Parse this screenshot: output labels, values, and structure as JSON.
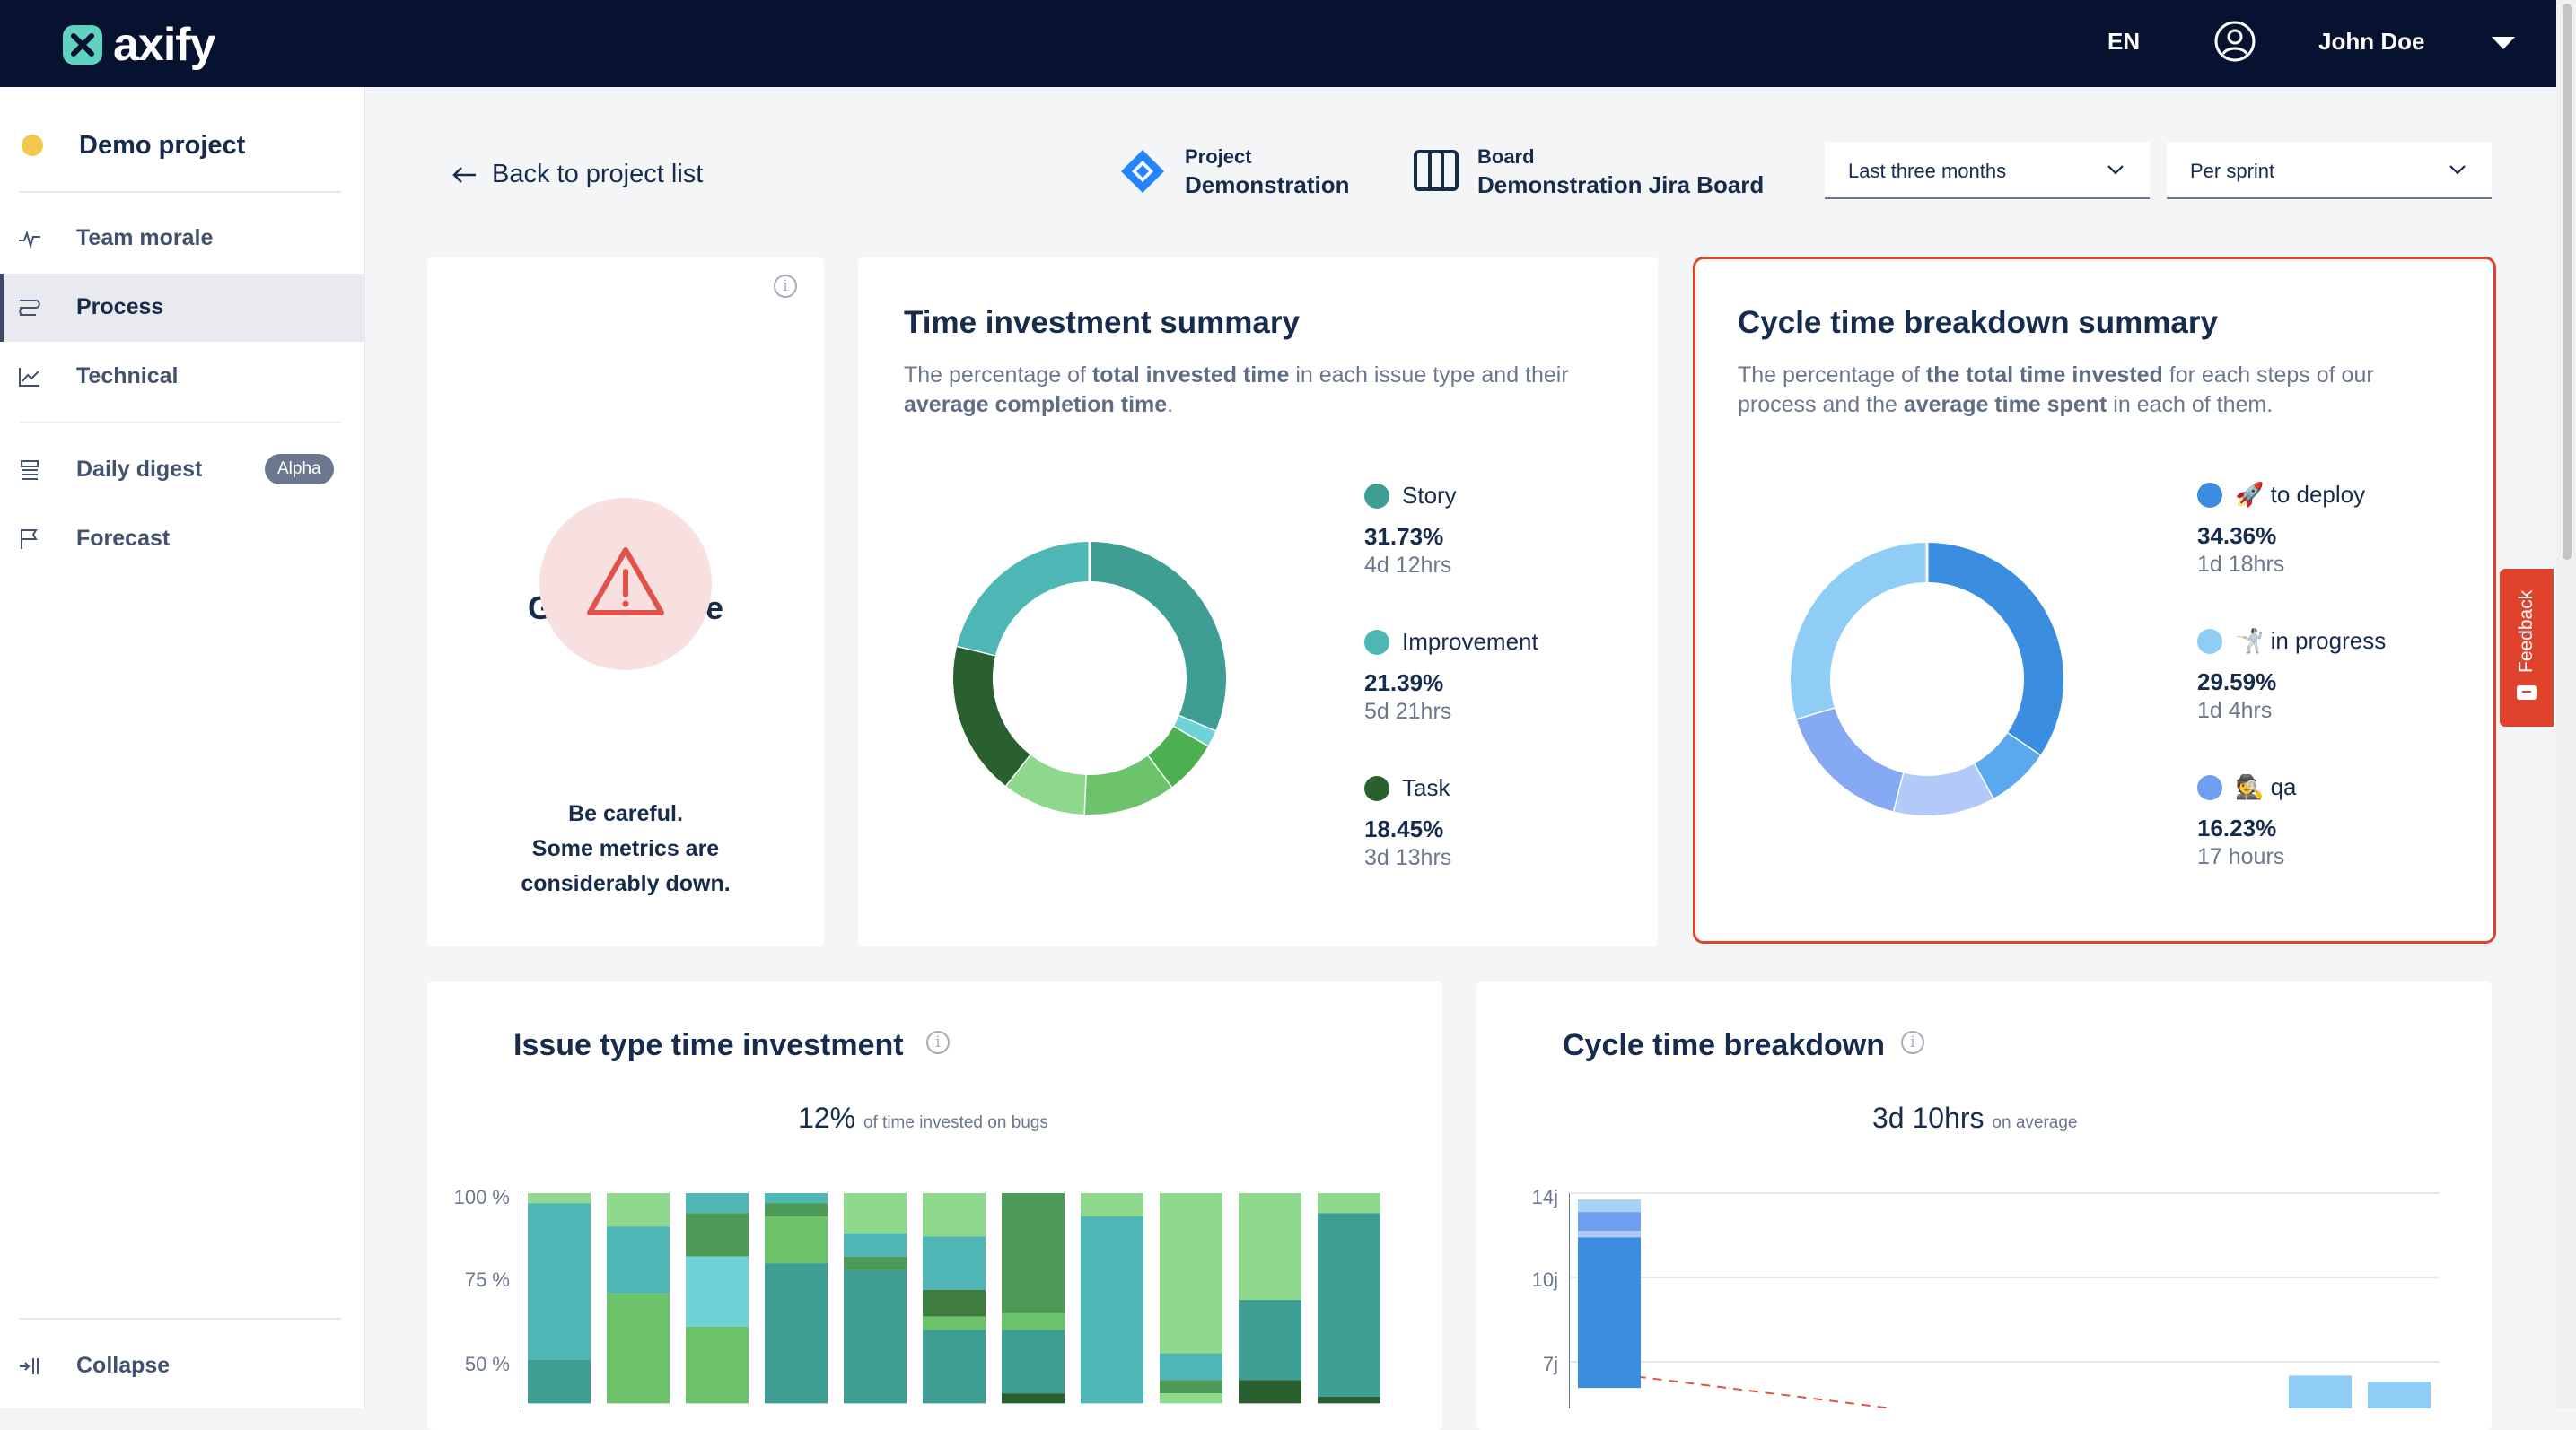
{
  "app": {
    "logo_text": "axify"
  },
  "topbar": {
    "lang": "EN",
    "user_name": "John Doe"
  },
  "sidebar": {
    "project": "Demo project",
    "items": [
      {
        "label": "Team morale",
        "icon": "pulse-icon"
      },
      {
        "label": "Process",
        "icon": "process-icon",
        "active": true
      },
      {
        "label": "Technical",
        "icon": "trend-chart-icon"
      },
      {
        "label": "Daily digest",
        "icon": "digest-icon",
        "badge": "Alpha"
      },
      {
        "label": "Forecast",
        "icon": "flag-icon"
      }
    ],
    "collapse": "Collapse"
  },
  "header": {
    "back": "Back to project list",
    "project_caption": "Project",
    "project_value": "Demonstration",
    "board_caption": "Board",
    "board_value": "Demonstration Jira Board",
    "period": "Last three months",
    "granularity": "Per sprint"
  },
  "global_score": {
    "title": "Global score",
    "message_line1": "Be careful.",
    "message_line2": "Some metrics are",
    "message_line3": "considerably down."
  },
  "time_investment": {
    "title": "Time investment summary",
    "desc_line1_pre": "The percentage of ",
    "desc_line1_bold": "total invested time",
    "desc_line1_post": " in each issue type and their",
    "desc_line2_bold": "average completion time",
    "desc_line2_post": ".",
    "legend": [
      {
        "name": "Story",
        "pct": "31.73%",
        "dur": "4d 12hrs",
        "color": "#3f9e94"
      },
      {
        "name": "Improvement",
        "pct": "21.39%",
        "dur": "5d 21hrs",
        "color": "#4fb6b6"
      },
      {
        "name": "Task",
        "pct": "18.45%",
        "dur": "3d 13hrs",
        "color": "#2a5f2f"
      }
    ]
  },
  "cycle_summary": {
    "title": "Cycle time breakdown summary",
    "desc_line1_pre": "The percentage of ",
    "desc_line1_bold": "the total time invested",
    "desc_line1_post": " for each steps of our",
    "desc_line2_pre": "process and the ",
    "desc_line2_bold": "average time spent",
    "desc_line2_post": " in each of them.",
    "legend": [
      {
        "name": "🚀 to deploy",
        "pct": "34.36%",
        "dur": "1d 18hrs",
        "color": "#3b8de0"
      },
      {
        "name": "🤺 in progress",
        "pct": "29.59%",
        "dur": "1d 4hrs",
        "color": "#8fcdf7"
      },
      {
        "name": "🕵️ qa",
        "pct": "16.23%",
        "dur": "17 hours",
        "color": "#6f9ef0"
      }
    ]
  },
  "issue_type_chart": {
    "title": "Issue type time investment",
    "headline_value": "12%",
    "headline_caption": "of time invested on bugs",
    "y_ticks": [
      "100 %",
      "75 %",
      "50 %"
    ]
  },
  "cycle_chart": {
    "title": "Cycle time breakdown",
    "headline_value": "3d 10hrs",
    "headline_caption": "on average",
    "y_ticks": [
      "14j",
      "10j",
      "7j"
    ]
  },
  "feedback": "Feedback",
  "chart_data": [
    {
      "type": "pie",
      "title": "Time investment summary",
      "slices": [
        {
          "label": "Story",
          "value": 31.73,
          "color": "#3f9e94"
        },
        {
          "label": "",
          "value": 2.0,
          "color": "#6ed3d6"
        },
        {
          "label": "",
          "value": 6.5,
          "color": "#4caf50"
        },
        {
          "label": "",
          "value": 11.0,
          "color": "#6cc36c"
        },
        {
          "label": "",
          "value": 10.0,
          "color": "#8fd98f"
        },
        {
          "label": "Task",
          "value": 18.45,
          "color": "#2a5f2f"
        },
        {
          "label": "Improvement",
          "value": 21.39,
          "color": "#4fb6b6"
        }
      ]
    },
    {
      "type": "pie",
      "title": "Cycle time breakdown summary",
      "slices": [
        {
          "label": "🚀 to deploy",
          "value": 34.36,
          "color": "#3b8de0"
        },
        {
          "label": "",
          "value": 7.5,
          "color": "#5aa9ef"
        },
        {
          "label": "",
          "value": 12.0,
          "color": "#b3c9f7"
        },
        {
          "label": "🕵️ qa",
          "value": 16.23,
          "color": "#86a9f4"
        },
        {
          "label": "🤺 in progress",
          "value": 29.59,
          "color": "#8fcdf7"
        }
      ]
    },
    {
      "type": "bar",
      "title": "Issue type time investment",
      "ylim": [
        0,
        100
      ],
      "stacked": true,
      "y_ticks": [
        100,
        75,
        50
      ],
      "series": [
        {
          "color": "#4fb6b6",
          "values": [
            null,
            null,
            null,
            null,
            null,
            null,
            null,
            null,
            null,
            null,
            null
          ]
        }
      ],
      "stacks": [
        [
          {
            "v": 3,
            "c": "#8fd98f"
          },
          {
            "v": 47,
            "c": "#4fb6b6"
          },
          {
            "v": 13,
            "c": "#3f9e94"
          }
        ],
        [
          {
            "v": 10,
            "c": "#8fd98f"
          },
          {
            "v": 20,
            "c": "#4fb6b6"
          },
          {
            "v": 33,
            "c": "#6cc36c"
          }
        ],
        [
          {
            "v": 6,
            "c": "#4fb6b6"
          },
          {
            "v": 13,
            "c": "#4c9a55"
          },
          {
            "v": 21,
            "c": "#6ed3d6"
          },
          {
            "v": 23,
            "c": "#6cc36c"
          }
        ],
        [
          {
            "v": 3,
            "c": "#4fb6b6"
          },
          {
            "v": 4,
            "c": "#4c9a55"
          },
          {
            "v": 14,
            "c": "#6cc36c"
          },
          {
            "v": 42,
            "c": "#3f9e94"
          }
        ],
        [
          {
            "v": 12,
            "c": "#8fd98f"
          },
          {
            "v": 7,
            "c": "#4fb6b6"
          },
          {
            "v": 4,
            "c": "#4c9a55"
          },
          {
            "v": 40,
            "c": "#3f9e94"
          }
        ],
        [
          {
            "v": 13,
            "c": "#8fd98f"
          },
          {
            "v": 16,
            "c": "#4fb6b6"
          },
          {
            "v": 8,
            "c": "#3e7d3f"
          },
          {
            "v": 4,
            "c": "#6cc36c"
          },
          {
            "v": 22,
            "c": "#3f9e94"
          }
        ],
        [
          {
            "v": 36,
            "c": "#4c9a55"
          },
          {
            "v": 5,
            "c": "#6cc36c"
          },
          {
            "v": 19,
            "c": "#3f9e94"
          },
          {
            "v": 3,
            "c": "#2a5f2f"
          }
        ],
        [
          {
            "v": 7,
            "c": "#8fd98f"
          },
          {
            "v": 56,
            "c": "#4fb6b6"
          }
        ],
        [
          {
            "v": 48,
            "c": "#8fd98f"
          },
          {
            "v": 8,
            "c": "#4fb6b6"
          },
          {
            "v": 4,
            "c": "#4c9a55"
          },
          {
            "v": 3,
            "c": "#8fd98f"
          }
        ],
        [
          {
            "v": 32,
            "c": "#8fd98f"
          },
          {
            "v": 24,
            "c": "#3f9e94"
          },
          {
            "v": 7,
            "c": "#2a5f2f"
          }
        ],
        [
          {
            "v": 6,
            "c": "#8fd98f"
          },
          {
            "v": 55,
            "c": "#3f9e94"
          },
          {
            "v": 2,
            "c": "#2a5f2f"
          }
        ]
      ]
    },
    {
      "type": "bar",
      "title": "Cycle time breakdown",
      "y_ticks": [
        "14j",
        "10j",
        "7j"
      ],
      "visible_bars": [
        {
          "x_index": 0,
          "segments": [
            {
              "v": 0.6,
              "c": "#a9d3f6"
            },
            {
              "v": 0.9,
              "c": "#6f9ef0"
            },
            {
              "v": 0.3,
              "c": "#b3c9f7"
            },
            {
              "v": 4.2,
              "c": "#3b8de0"
            }
          ]
        },
        {
          "x_index": 9,
          "segments": [
            {
              "v": 0.5,
              "c": "#8fcdf7"
            }
          ]
        },
        {
          "x_index": 10,
          "segments": [
            {
              "v": 0.3,
              "c": "#8fcdf7"
            }
          ]
        }
      ]
    }
  ]
}
